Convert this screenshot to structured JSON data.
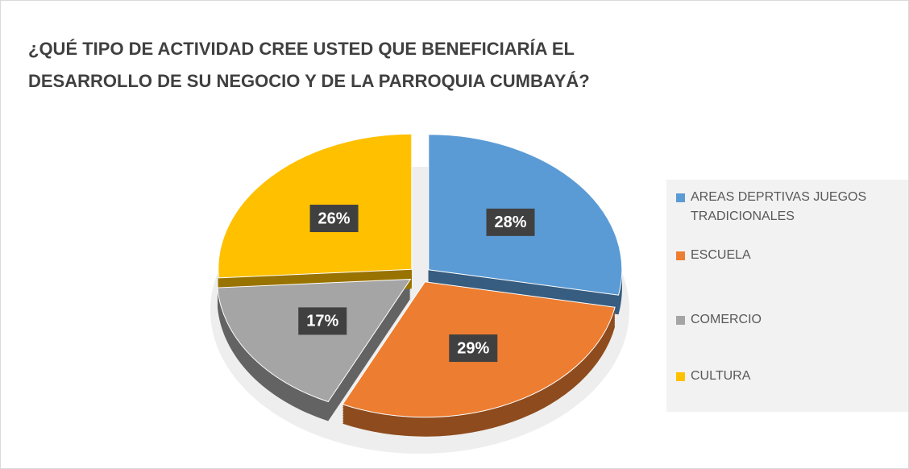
{
  "chart_data": {
    "type": "pie",
    "title": "¿QUÉ TIPO DE ACTIVIDAD CREE USTED QUE BENEFICIARÍA EL DESARROLLO DE SU NEGOCIO Y DE LA PARROQUIA CUMBAYÁ?",
    "categories": [
      "AREAS DEPRTIVAS JUEGOS TRADICIONALES",
      "ESCUELA",
      "COMERCIO",
      "CULTURA"
    ],
    "values": [
      28,
      29,
      17,
      26
    ],
    "value_labels": [
      "28%",
      "29%",
      "17%",
      "26%"
    ],
    "colors": [
      "#5b9bd5",
      "#ed7d31",
      "#a5a5a5",
      "#ffc000"
    ],
    "legend": "right"
  }
}
